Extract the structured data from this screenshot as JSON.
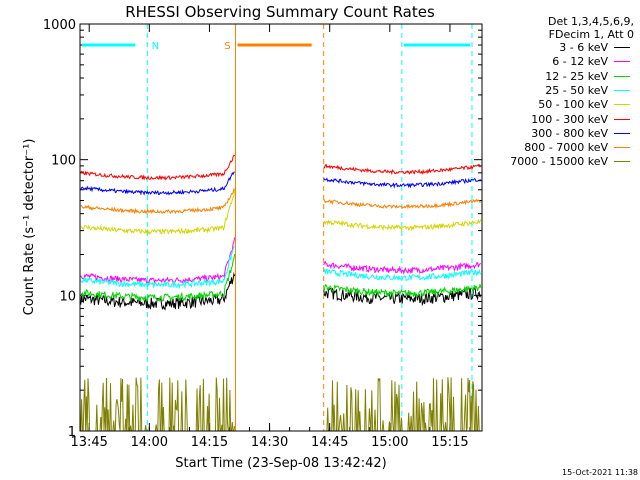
{
  "chart_data": {
    "type": "line",
    "title": "RHESSI Observing Summary Count Rates",
    "xlabel": "Start Time (23-Sep-08 13:42:42)",
    "ylabel": "Count Rate (s⁻¹ detector⁻¹)",
    "yscale": "log",
    "ylim": [
      1,
      1000
    ],
    "xlim": [
      "13:42:42",
      "15:23:00"
    ],
    "xticks": [
      "13:45",
      "14:00",
      "14:15",
      "14:30",
      "14:45",
      "15:00",
      "15:15"
    ],
    "yticks": [
      "1",
      "10",
      "100",
      "1000"
    ],
    "series": [
      {
        "name": "3 - 6 keV",
        "color": "#000000",
        "pre_level": 9.5,
        "post_level": 10.5,
        "noise": 0.1
      },
      {
        "name": "6 - 12 keV",
        "color": "#ff00ff",
        "pre_level": 14,
        "post_level": 17,
        "noise": 0.05
      },
      {
        "name": "12 - 25 keV",
        "color": "#00d400",
        "pre_level": 10.5,
        "post_level": 11.5,
        "noise": 0.06
      },
      {
        "name": "25 - 50 keV",
        "color": "#00ffff",
        "pre_level": 13,
        "post_level": 15,
        "noise": 0.05
      },
      {
        "name": "50 - 100 keV",
        "color": "#d4d400",
        "pre_level": 32,
        "post_level": 35,
        "noise": 0.04
      },
      {
        "name": "100 - 300 keV",
        "color": "#ff0000",
        "pre_level": 80,
        "post_level": 90,
        "noise": 0.03
      },
      {
        "name": "300 - 800 keV",
        "color": "#0000ff",
        "pre_level": 62,
        "post_level": 72,
        "noise": 0.03
      },
      {
        "name": "800 - 7000 keV",
        "color": "#ff8000",
        "pre_level": 45,
        "post_level": 50,
        "noise": 0.03
      },
      {
        "name": "7000 - 15000 keV",
        "color": "#808000",
        "pre_level": 1.5,
        "post_level": 1.5,
        "noise": 0.0
      }
    ],
    "data_gaps": [
      [
        "14:21:30",
        "14:43:30"
      ]
    ],
    "annotations": [
      {
        "label": "N",
        "color": "#00ffff",
        "start": "13:42:42",
        "end": "13:59:30"
      },
      {
        "label": "S",
        "color": "#ff8000",
        "start": "14:21:30",
        "end": "14:43:30"
      },
      {
        "label": "",
        "color": "#00ffff",
        "start": "15:03:00",
        "end": "15:20:30"
      }
    ],
    "legend_header": [
      "Det 1,3,4,5,6,9,",
      "FDecim 1, Att 0"
    ],
    "legend_position": "right"
  },
  "footer": {
    "timestamp": "15-Oct-2021 11:38"
  }
}
